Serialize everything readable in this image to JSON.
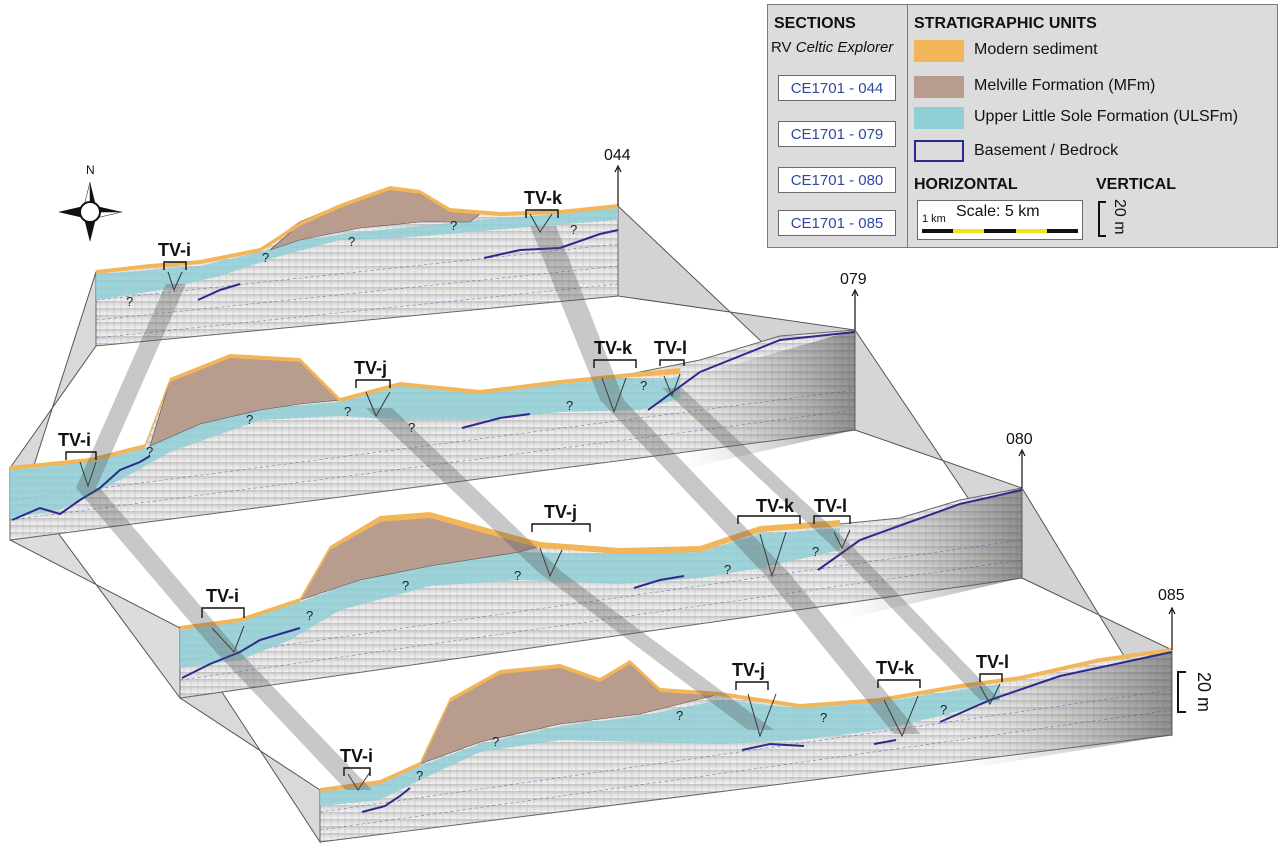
{
  "colors": {
    "modern_sediment": "#f2b557",
    "melville": "#b89c8d",
    "ulsf": "#8fcfd6",
    "bedrock": "#2e2a8c",
    "section_link": "#2e4a9e",
    "wall": "#d7d7d7"
  },
  "legend": {
    "sections_title": "SECTIONS",
    "vessel_prefix": "RV",
    "vessel_name": "Celtic Explorer",
    "sections": [
      "CE1701 - 044",
      "CE1701 - 079",
      "CE1701 - 080",
      "CE1701 - 085"
    ],
    "units_title": "STRATIGRAPHIC UNITS",
    "units": [
      {
        "label": "Modern sediment",
        "color": "#f2b557"
      },
      {
        "label": "Melville Formation (MFm)",
        "color": "#b89c8d"
      },
      {
        "label": "Upper Little Sole Formation (ULSFm)",
        "color": "#8fcfd6"
      },
      {
        "label": "Basement / Bedrock",
        "color": "none"
      }
    ],
    "horizontal_title": "HORIZONTAL",
    "vertical_title": "VERTICAL",
    "scale_label": "Scale: 5 km",
    "scale_small": "1 km",
    "vertical_scale": "20 m"
  },
  "north": "N",
  "profile_labels": [
    "044",
    "079",
    "080",
    "085"
  ],
  "vertical_scale_right": "20 m",
  "tv_labels": {
    "p044": [
      "TV-i",
      "TV-k"
    ],
    "p079": [
      "TV-i",
      "TV-j",
      "TV-k",
      "TV-l"
    ],
    "p080": [
      "TV-i",
      "TV-j",
      "TV-k",
      "TV-l"
    ],
    "p085": [
      "TV-i",
      "TV-j",
      "TV-k",
      "TV-l"
    ]
  },
  "query_mark": "?"
}
